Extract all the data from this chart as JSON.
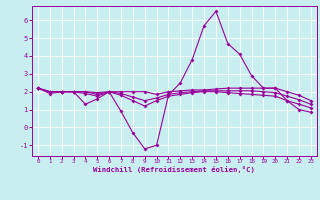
{
  "xlabel": "Windchill (Refroidissement éolien,°C)",
  "bg_color": "#c8eef0",
  "line_color": "#990099",
  "grid_color": "#aadddd",
  "ylim": [
    -1.6,
    6.8
  ],
  "xlim": [
    -0.5,
    23.5
  ],
  "yticks": [
    -1,
    0,
    1,
    2,
    3,
    4,
    5,
    6
  ],
  "xticks": [
    0,
    1,
    2,
    3,
    4,
    5,
    6,
    7,
    8,
    9,
    10,
    11,
    12,
    13,
    14,
    15,
    16,
    17,
    18,
    19,
    20,
    21,
    22,
    23
  ],
  "series1_x": [
    0,
    1,
    2,
    3,
    4,
    5,
    6,
    7,
    8,
    9,
    10,
    11,
    12,
    13,
    14,
    15,
    16,
    17,
    18,
    19,
    20,
    21,
    22,
    23
  ],
  "series1_y": [
    2.2,
    1.9,
    2.0,
    2.0,
    1.3,
    1.6,
    2.0,
    0.9,
    -0.3,
    -1.2,
    -1.0,
    1.8,
    2.5,
    3.8,
    5.7,
    6.5,
    4.7,
    4.1,
    2.9,
    2.2,
    2.2,
    1.5,
    1.0,
    0.85
  ],
  "series2_x": [
    0,
    1,
    2,
    3,
    4,
    5,
    6,
    7,
    8,
    9,
    10,
    11,
    12,
    13,
    14,
    15,
    16,
    17,
    18,
    19,
    20,
    21,
    22,
    23
  ],
  "series2_y": [
    2.2,
    2.0,
    2.0,
    2.0,
    2.0,
    1.95,
    2.0,
    2.0,
    2.0,
    2.0,
    1.85,
    2.0,
    2.05,
    2.1,
    2.1,
    2.15,
    2.2,
    2.2,
    2.2,
    2.2,
    2.2,
    2.0,
    1.8,
    1.5
  ],
  "series3_x": [
    0,
    1,
    2,
    3,
    4,
    5,
    6,
    7,
    8,
    9,
    10,
    11,
    12,
    13,
    14,
    15,
    16,
    17,
    18,
    19,
    20,
    21,
    22,
    23
  ],
  "series3_y": [
    2.2,
    2.0,
    2.0,
    2.0,
    1.9,
    1.75,
    2.0,
    1.8,
    1.5,
    1.2,
    1.5,
    1.75,
    1.85,
    1.95,
    2.0,
    2.0,
    1.95,
    1.9,
    1.85,
    1.8,
    1.75,
    1.5,
    1.3,
    1.1
  ],
  "series4_x": [
    0,
    1,
    2,
    3,
    4,
    5,
    6,
    7,
    8,
    9,
    10,
    11,
    12,
    13,
    14,
    15,
    16,
    17,
    18,
    19,
    20,
    21,
    22,
    23
  ],
  "series4_y": [
    2.2,
    2.0,
    2.0,
    2.0,
    2.0,
    1.85,
    2.0,
    1.9,
    1.7,
    1.5,
    1.65,
    1.85,
    1.95,
    2.0,
    2.05,
    2.05,
    2.05,
    2.05,
    2.05,
    2.0,
    1.95,
    1.75,
    1.55,
    1.3
  ]
}
